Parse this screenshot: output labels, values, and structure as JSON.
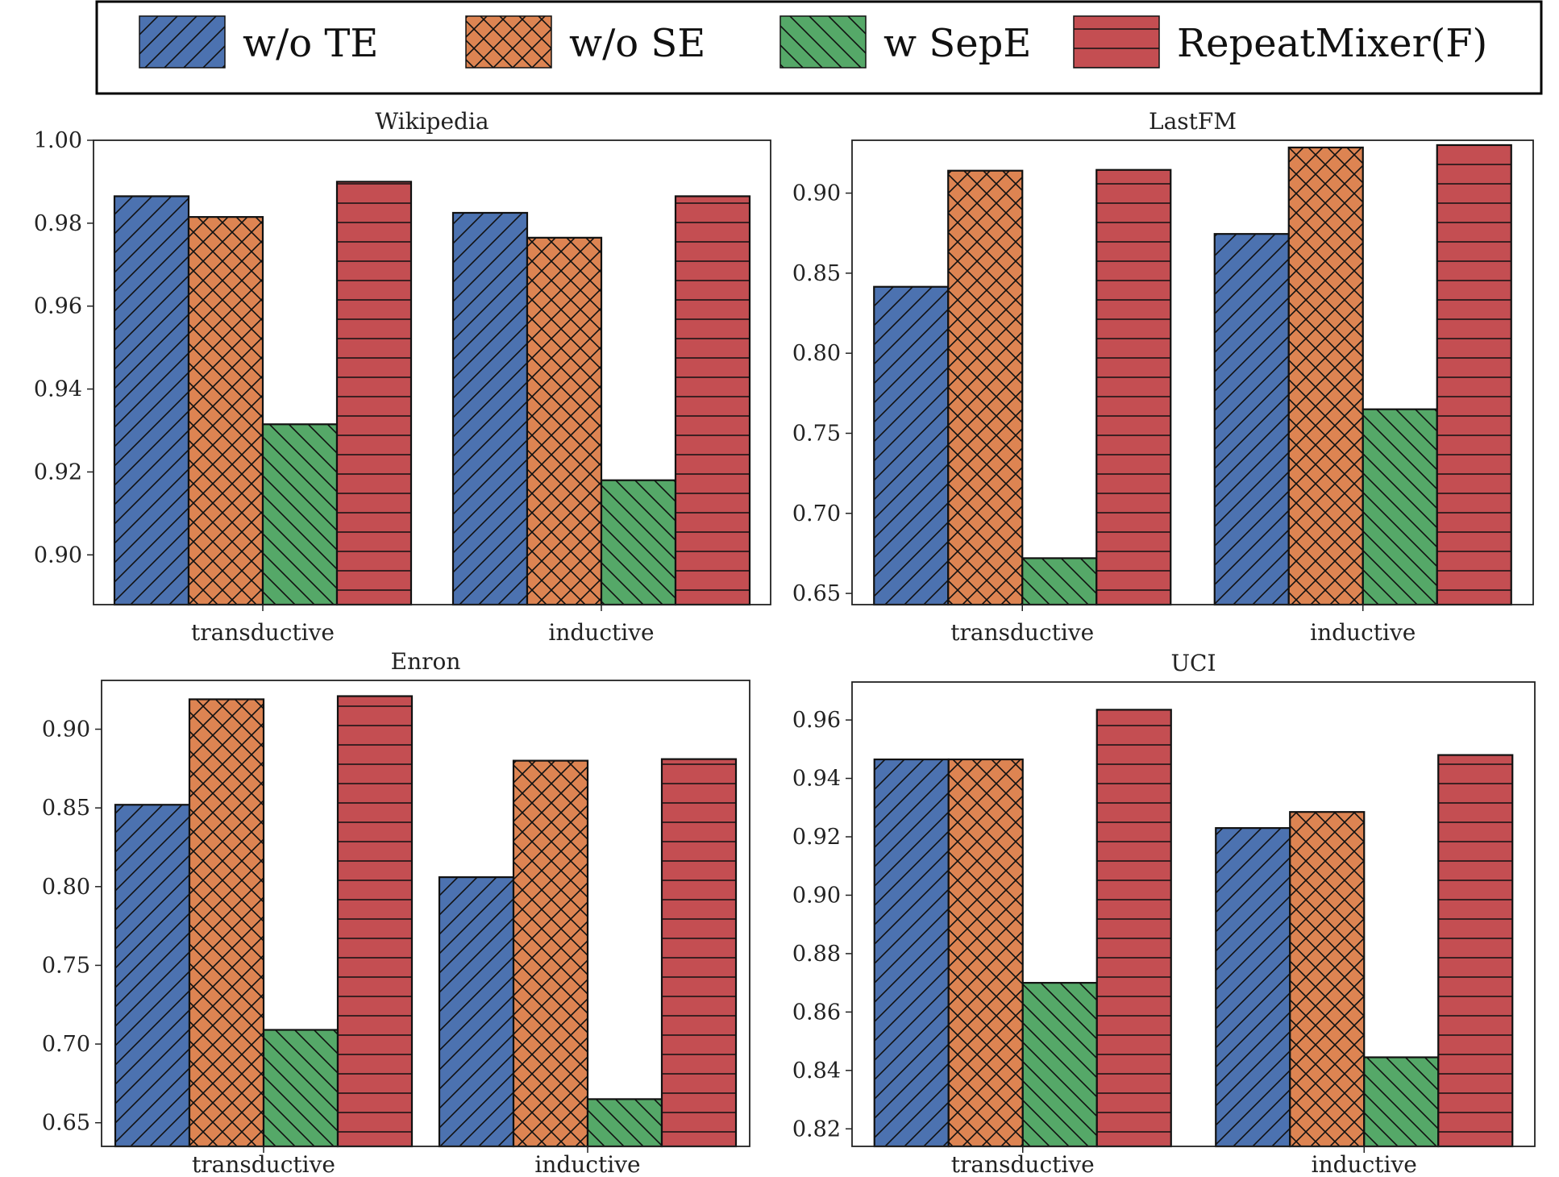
{
  "series_styles": [
    {
      "name": "w/o TE",
      "color": "#4c72b0",
      "hatch": "diag-forward"
    },
    {
      "name": "w/o SE",
      "color": "#dd8452",
      "hatch": "cross"
    },
    {
      "name": "w SepE",
      "color": "#55a868",
      "hatch": "diag-back"
    },
    {
      "name": "RepeatMixer(F)",
      "color": "#c44e52",
      "hatch": "horizontal"
    }
  ],
  "chart_data": [
    {
      "type": "bar",
      "title": "Wikipedia",
      "categories": [
        "transductive",
        "inductive"
      ],
      "ylim": [
        0.888,
        1.0
      ],
      "yticks": [
        "0.90",
        "0.92",
        "0.94",
        "0.96",
        "0.98",
        "1.00"
      ],
      "legend": "top",
      "grid": false,
      "series": [
        {
          "name": "w/o TE",
          "values": [
            0.9865,
            0.9825
          ]
        },
        {
          "name": "w/o SE",
          "values": [
            0.9815,
            0.9765
          ]
        },
        {
          "name": "w SepE",
          "values": [
            0.9315,
            0.918
          ]
        },
        {
          "name": "RepeatMixer(F)",
          "values": [
            0.99,
            0.9865
          ]
        }
      ]
    },
    {
      "type": "bar",
      "title": "LastFM",
      "categories": [
        "transductive",
        "inductive"
      ],
      "ylim": [
        0.643,
        0.933
      ],
      "yticks": [
        "0.65",
        "0.70",
        "0.75",
        "0.80",
        "0.85",
        "0.90"
      ],
      "legend": "top",
      "grid": false,
      "series": [
        {
          "name": "w/o TE",
          "values": [
            0.8415,
            0.8745
          ]
        },
        {
          "name": "w/o SE",
          "values": [
            0.914,
            0.9285
          ]
        },
        {
          "name": "w SepE",
          "values": [
            0.672,
            0.765
          ]
        },
        {
          "name": "RepeatMixer(F)",
          "values": [
            0.9145,
            0.93
          ]
        }
      ]
    },
    {
      "type": "bar",
      "title": "Enron",
      "categories": [
        "transductive",
        "inductive"
      ],
      "ylim": [
        0.635,
        0.931
      ],
      "yticks": [
        "0.65",
        "0.70",
        "0.75",
        "0.80",
        "0.85",
        "0.90"
      ],
      "legend": "top",
      "grid": false,
      "series": [
        {
          "name": "w/o TE",
          "values": [
            0.852,
            0.806
          ]
        },
        {
          "name": "w/o SE",
          "values": [
            0.919,
            0.88
          ]
        },
        {
          "name": "w SepE",
          "values": [
            0.709,
            0.665
          ]
        },
        {
          "name": "RepeatMixer(F)",
          "values": [
            0.921,
            0.881
          ]
        }
      ]
    },
    {
      "type": "bar",
      "title": "UCI",
      "categories": [
        "transductive",
        "inductive"
      ],
      "ylim": [
        0.814,
        0.973
      ],
      "yticks": [
        "0.82",
        "0.84",
        "0.86",
        "0.88",
        "0.90",
        "0.92",
        "0.94",
        "0.96"
      ],
      "legend": "top",
      "grid": false,
      "series": [
        {
          "name": "w/o TE",
          "values": [
            0.9465,
            0.923
          ]
        },
        {
          "name": "w/o SE",
          "values": [
            0.9465,
            0.9285
          ]
        },
        {
          "name": "w SepE",
          "values": [
            0.87,
            0.8445
          ]
        },
        {
          "name": "RepeatMixer(F)",
          "values": [
            0.9635,
            0.948
          ]
        }
      ]
    }
  ]
}
